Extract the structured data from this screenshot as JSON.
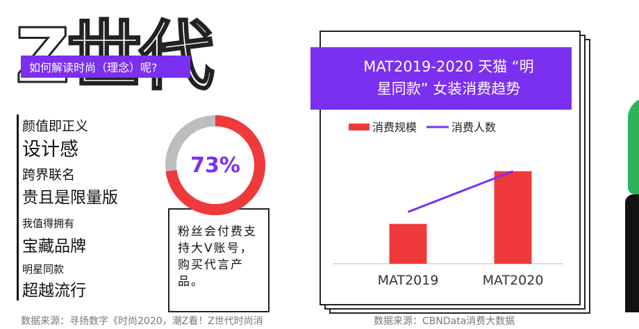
{
  "hero": {
    "title": "Z世代",
    "band_text": "如何解读时尚（理念）呢?"
  },
  "features": [
    {
      "label": "颜值即正义"
    },
    {
      "label": "设计感"
    },
    {
      "label": "跨界联名"
    },
    {
      "label": "贵且是限量版"
    },
    {
      "label": "我值得拥有"
    },
    {
      "label": "宝藏品牌"
    },
    {
      "label": "明星同款"
    },
    {
      "label": "超越流行"
    }
  ],
  "donut": {
    "percent_label": "73%",
    "value": 0.73,
    "fill_color": "#f0393a",
    "track_color": "#bdbdbd",
    "note": "粉丝会付费支持大V账号，购买代言产品。"
  },
  "card": {
    "title_line1": "MAT2019-2020 天猫 “明",
    "title_line2": "星同款” 女装消费趋势"
  },
  "chart_data": {
    "type": "bar",
    "title": "MAT2019-2020 天猫 “明星同款” 女装消费趋势",
    "categories": [
      "MAT2019",
      "MAT2020"
    ],
    "series": [
      {
        "name": "消费规模",
        "type": "bar",
        "color": "#f0393a",
        "values": [
          0.43,
          1.0
        ]
      },
      {
        "name": "消费人数",
        "type": "line",
        "color": "#7b2ff0",
        "values": [
          0.56,
          1.0
        ]
      }
    ],
    "ylim": [
      0,
      1.05
    ],
    "grid": false,
    "legend": "top-left"
  },
  "sources": {
    "left": "数据来源：寻扬数字《时尚2020，潮Z看！Z世代时尚消",
    "right": "数据来源：CBNData消费大数据"
  },
  "colors": {
    "accent": "#7b2ff0",
    "bar": "#f0393a"
  }
}
